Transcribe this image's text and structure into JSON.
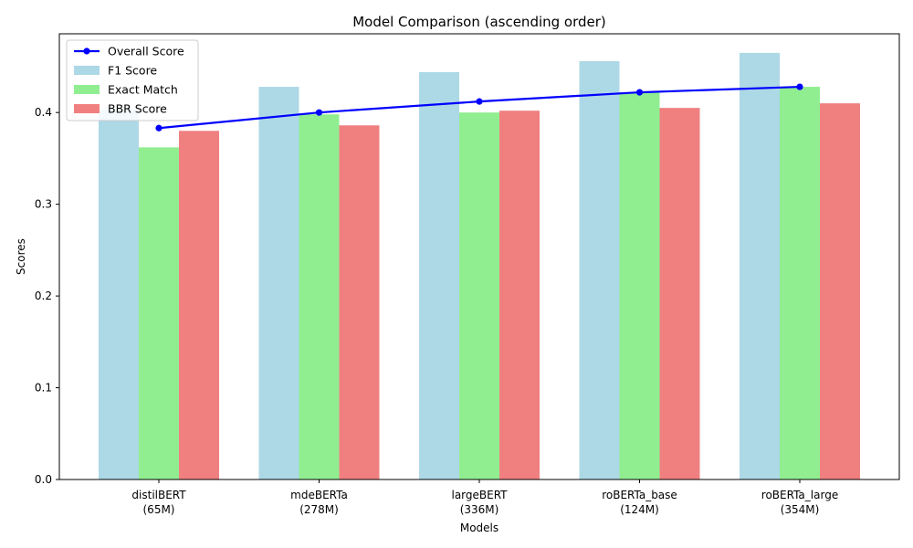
{
  "chart_data": {
    "type": "bar",
    "title": "Model Comparison (ascending order)",
    "xlabel": "Models",
    "ylabel": "Scores",
    "ylim": [
      0,
      0.4858
    ],
    "yticks": [
      "0.0",
      "0.1",
      "0.2",
      "0.3",
      "0.4"
    ],
    "categories": [
      [
        "distilBERT",
        "(65M)"
      ],
      [
        "mdeBERTa",
        "(278M)"
      ],
      [
        "largeBERT",
        "(336M)"
      ],
      [
        "roBERTa_base",
        "(124M)"
      ],
      [
        "roBERTa_large",
        "(354M)"
      ]
    ],
    "series": [
      {
        "name": "F1 Score",
        "type": "bar",
        "color": "#add8e6",
        "values": [
          0.403,
          0.428,
          0.444,
          0.456,
          0.465
        ]
      },
      {
        "name": "Exact Match",
        "type": "bar",
        "color": "#90ee90",
        "values": [
          0.362,
          0.398,
          0.4,
          0.422,
          0.428
        ]
      },
      {
        "name": "BBR Score",
        "type": "bar",
        "color": "#f08080",
        "values": [
          0.38,
          0.386,
          0.402,
          0.405,
          0.41
        ]
      },
      {
        "name": "Overall Score",
        "type": "line",
        "color": "#0000ff",
        "values": [
          0.383,
          0.4,
          0.412,
          0.422,
          0.428
        ]
      }
    ],
    "legend_position": "top-left",
    "grid": false
  }
}
